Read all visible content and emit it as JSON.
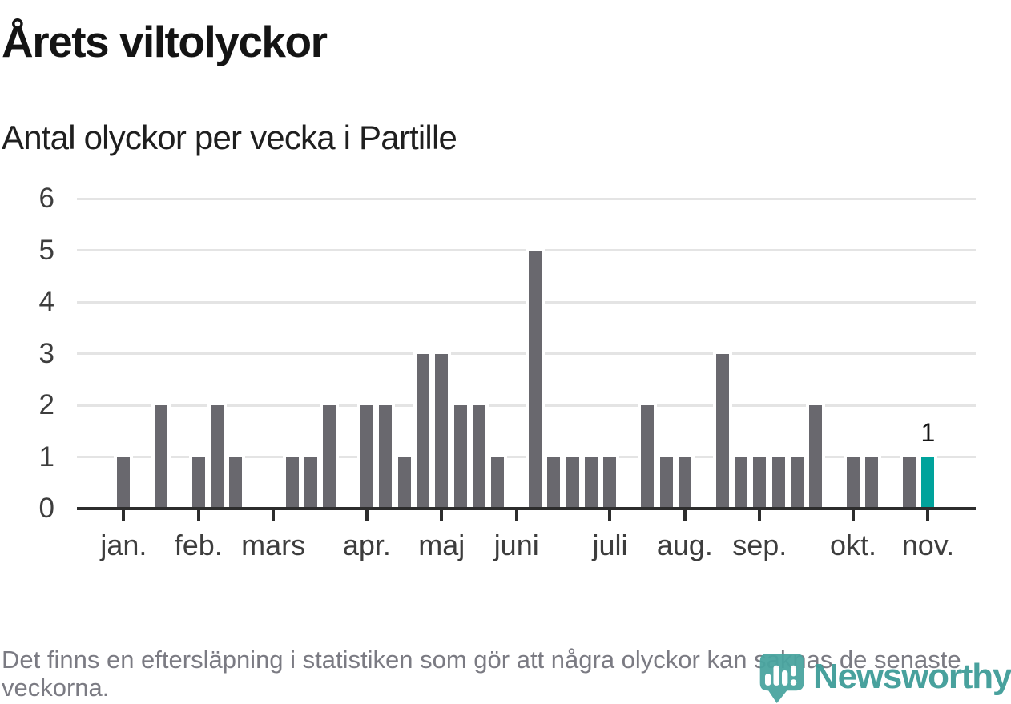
{
  "title": "Årets viltolyckor",
  "subtitle": "Antal olyckor per vecka i Partille",
  "footer_note": "Det finns en eftersläpning i statistiken som gör att några olyckor kan saknas de senaste veckorna.",
  "brand": {
    "name": "Newsworthy",
    "icon": "newsworthy-pin-barchart-icon"
  },
  "colors": {
    "title": "#141414",
    "subtitle": "#1f1f1f",
    "bar": "#69686e",
    "accent": "#00a39c",
    "grid": "#e4e4e4",
    "axis": "#2d2d2d",
    "axis_label": "#3d3d3d",
    "value_label": "#161616",
    "footer": "#7b7b83",
    "brand_teal": "#3f9c98",
    "mark_teal": "#4aa5a0"
  },
  "chart_data": {
    "type": "bar",
    "title": "Årets viltolyckor",
    "subtitle": "Antal olyckor per vecka i Partille",
    "xlabel": "",
    "ylabel": "Antal olyckor per vecka",
    "x_unit": "week-of-year",
    "num_weeks": 46,
    "values": [
      0,
      0,
      1,
      0,
      2,
      0,
      1,
      2,
      1,
      0,
      0,
      1,
      1,
      2,
      0,
      2,
      2,
      1,
      3,
      3,
      2,
      2,
      1,
      0,
      5,
      1,
      1,
      1,
      1,
      0,
      2,
      1,
      1,
      0,
      3,
      1,
      1,
      1,
      1,
      2,
      0,
      1,
      1,
      0,
      1,
      1
    ],
    "highlight_week": 46,
    "highlight_value_label": "1",
    "ylim": [
      0,
      6
    ],
    "y_ticks": [
      0,
      1,
      2,
      3,
      4,
      5,
      6
    ],
    "x_ticks": [
      {
        "label": "jan.",
        "week": 3
      },
      {
        "label": "feb.",
        "week": 7
      },
      {
        "label": "mars",
        "week": 11
      },
      {
        "label": "apr.",
        "week": 16
      },
      {
        "label": "maj",
        "week": 20
      },
      {
        "label": "juni",
        "week": 24
      },
      {
        "label": "juli",
        "week": 29
      },
      {
        "label": "aug.",
        "week": 33
      },
      {
        "label": "sep.",
        "week": 37
      },
      {
        "label": "okt.",
        "week": 42
      },
      {
        "label": "nov.",
        "week": 46
      }
    ],
    "total_x_slots": 48,
    "grid": "horizontal",
    "legend": "none"
  }
}
